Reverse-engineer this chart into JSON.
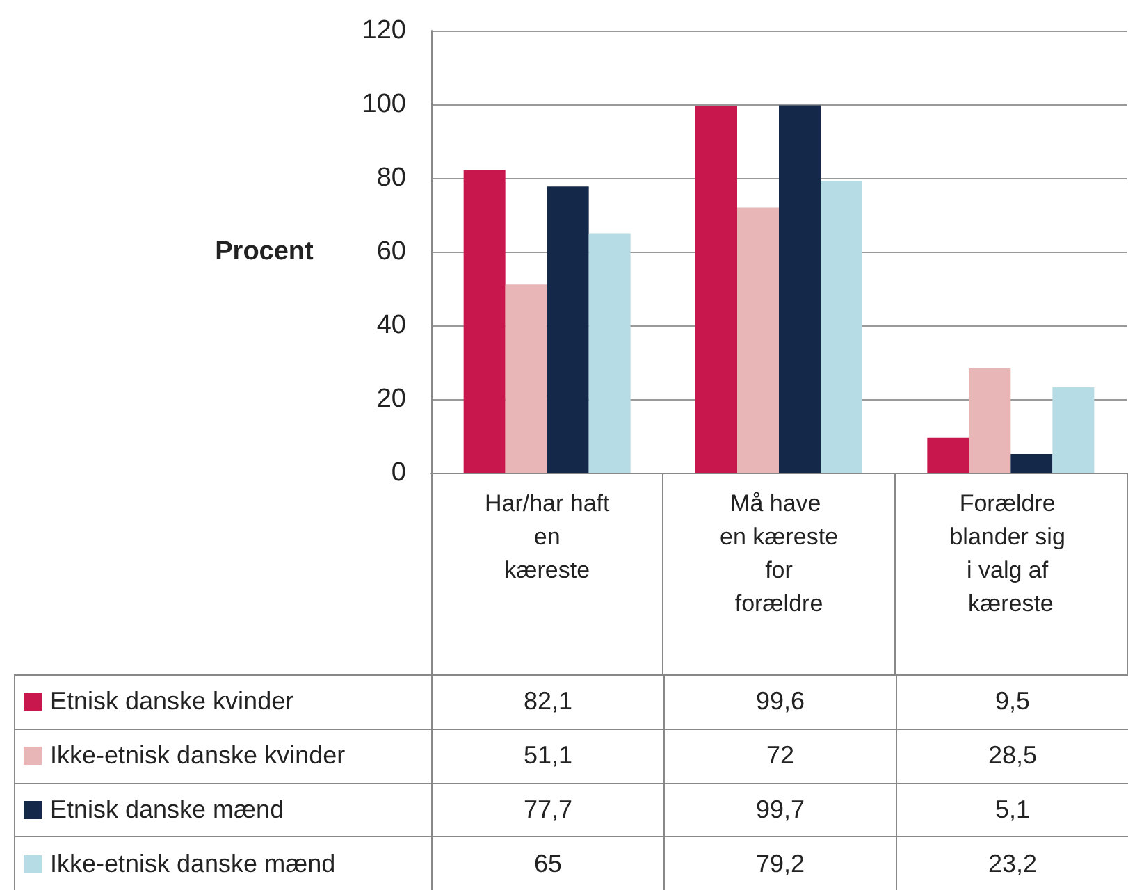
{
  "chart_data": {
    "type": "bar",
    "ylabel": "Procent",
    "categories": [
      "Har/har haft en kæreste",
      "Må have en kæreste for forældre",
      "Forældre blander sig i valg af kæreste"
    ],
    "series": [
      {
        "name": "Etnisk danske kvinder",
        "color": "#c8174d",
        "values": [
          82.1,
          99.6,
          9.5
        ],
        "value_labels": [
          "82,1",
          "99,6",
          "9,5"
        ]
      },
      {
        "name": "Ikke-etnisk danske kvinder",
        "color": "#e8b6b6",
        "values": [
          51.1,
          72,
          28.5
        ],
        "value_labels": [
          "51,1",
          "72",
          "28,5"
        ]
      },
      {
        "name": "Etnisk danske mænd",
        "color": "#14284a",
        "values": [
          77.7,
          99.7,
          5.1
        ],
        "value_labels": [
          "77,7",
          "99,7",
          "5,1"
        ]
      },
      {
        "name": "Ikke-etnisk danske mænd",
        "color": "#b6dde6",
        "values": [
          65,
          79.2,
          23.2
        ],
        "value_labels": [
          "65",
          "79,2",
          "23,2"
        ]
      }
    ],
    "ylim": [
      0,
      120
    ],
    "yticks": [
      0,
      20,
      40,
      60,
      80,
      100,
      120
    ],
    "grid": "y",
    "legend": "bottom"
  }
}
